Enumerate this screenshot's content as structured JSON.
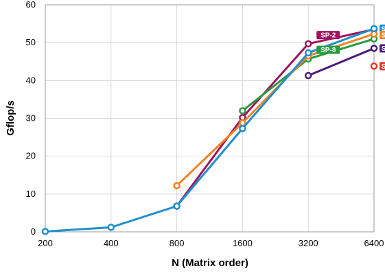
{
  "chart_data": {
    "type": "line",
    "xlabel": "N (Matrix order)",
    "ylabel": "Gflop/s",
    "categories": [
      "200",
      "400",
      "800",
      "1600",
      "3200",
      "6400"
    ],
    "ylim": [
      0,
      60
    ],
    "yticks": [
      0,
      10,
      20,
      30,
      40,
      50,
      60
    ],
    "x_scale": "log2",
    "grid": true,
    "series": [
      {
        "name": "SP-2",
        "color": "#a0135e",
        "values": [
          null,
          null,
          6.8,
          30.2,
          49.7,
          53.5
        ]
      },
      {
        "name": "SP-8",
        "color": "#2a9a3f",
        "values": [
          null,
          null,
          null,
          32.0,
          45.7,
          51.0
        ]
      },
      {
        "name": "",
        "color": "#f28225",
        "values": [
          null,
          null,
          12.2,
          28.8,
          46.5,
          52.3
        ]
      },
      {
        "name": "",
        "color": "#4c1a78",
        "values": [
          null,
          null,
          null,
          null,
          41.3,
          48.5
        ]
      },
      {
        "name": "",
        "color": "#e23a2a",
        "values": [
          null,
          null,
          null,
          null,
          null,
          43.8
        ]
      },
      {
        "name": "",
        "color": "#1f8fcd",
        "values": [
          0.1,
          1.2,
          6.8,
          27.3,
          47.3,
          53.7
        ]
      }
    ],
    "labels": [
      {
        "series": 0,
        "text": "SP-2",
        "x_index": 4,
        "y": 52.0
      },
      {
        "series": 1,
        "text": "SP-8",
        "x_index": 4,
        "y": 48.1
      },
      {
        "series": 5,
        "text": "S",
        "x_index": 5,
        "y": 53.7
      },
      {
        "series": 2,
        "text": "S",
        "x_index": 5,
        "y": 52.0
      },
      {
        "series": 3,
        "text": "S",
        "x_index": 5,
        "y": 48.5
      },
      {
        "series": 4,
        "text": "S",
        "x_index": 5,
        "y": 43.8
      }
    ]
  }
}
